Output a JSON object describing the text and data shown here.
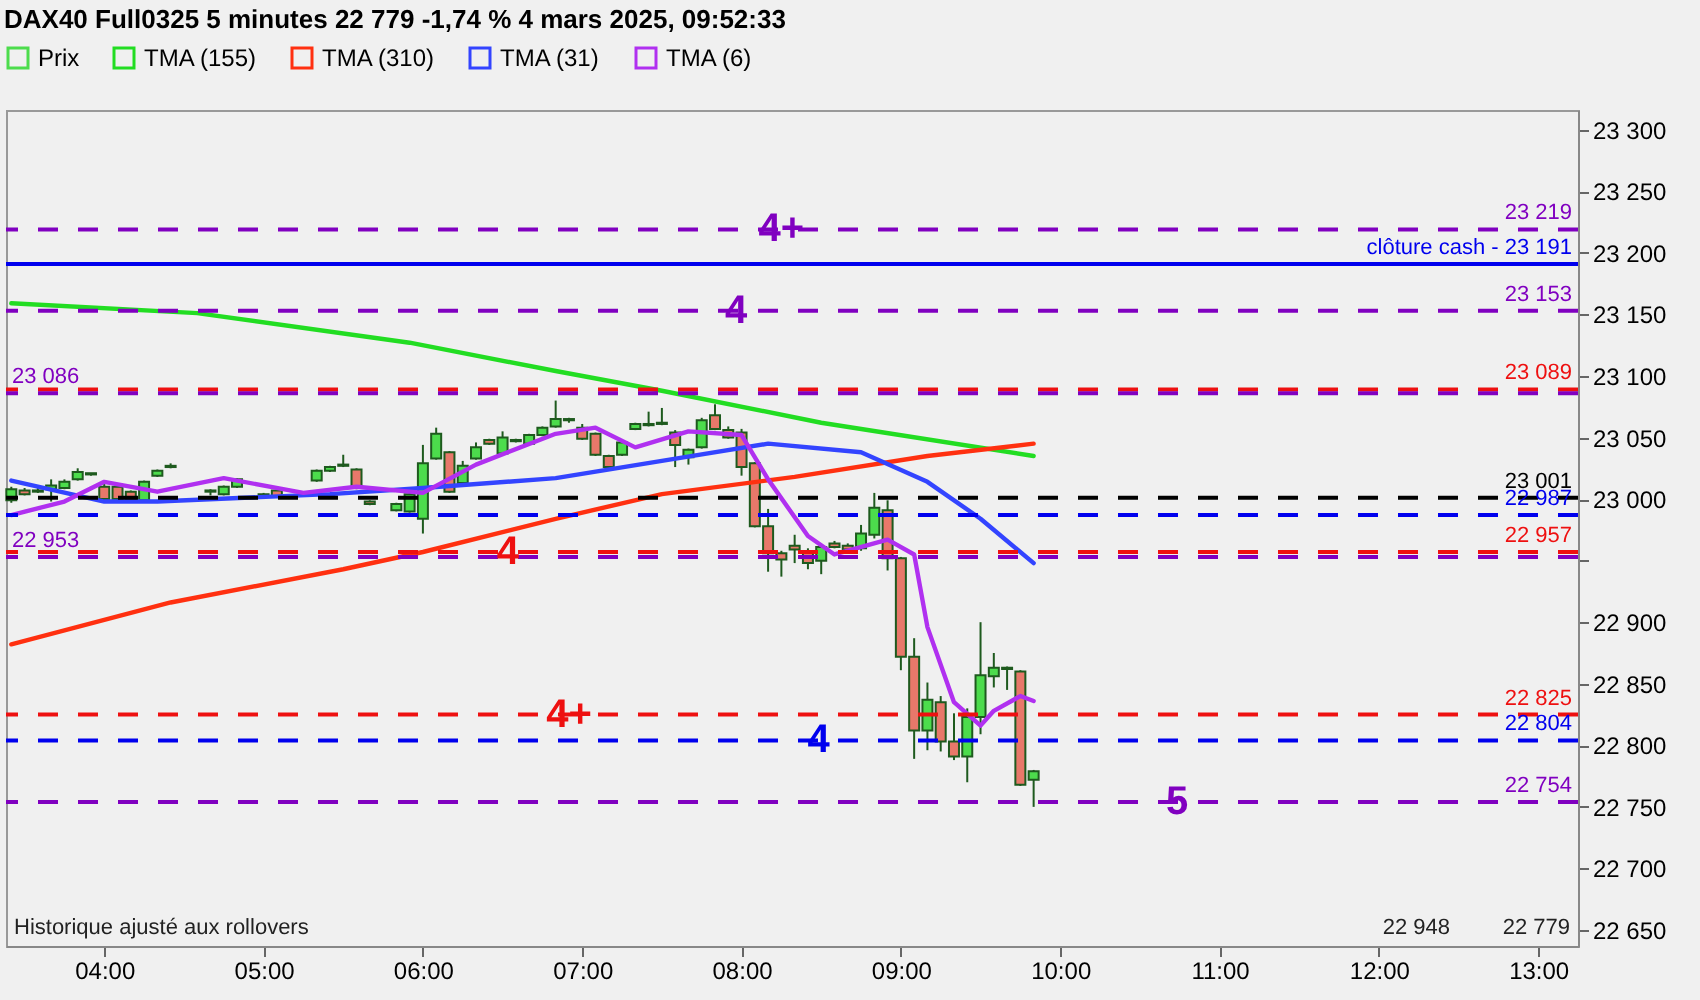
{
  "chart_data": {
    "type": "candlestick",
    "title": "DAX40 Full0325 5 minutes 22 779 -1,74 % 4 mars 2025, 09:52:33",
    "legend": "top left",
    "xlim": [
      "2025-03-04T03:23",
      "2025-03-04T13:15"
    ],
    "xticks": [
      {
        "value": "2025-03-04T04:00",
        "label": "04:00"
      },
      {
        "value": "2025-03-04T05:00",
        "label": "05:00"
      },
      {
        "value": "2025-03-04T06:00",
        "label": "06:00"
      },
      {
        "value": "2025-03-04T07:00",
        "label": "07:00"
      },
      {
        "value": "2025-03-04T08:00",
        "label": "08:00"
      },
      {
        "value": "2025-03-04T09:00",
        "label": "09:00"
      },
      {
        "value": "2025-03-04T10:00",
        "label": "10:00"
      },
      {
        "value": "2025-03-04T11:00",
        "label": "11:00"
      },
      {
        "value": "2025-03-04T12:00",
        "label": "12:00"
      },
      {
        "value": "2025-03-04T13:00",
        "label": "13:00"
      }
    ],
    "ylim": [
      22637,
      23316
    ],
    "yticks": [
      {
        "value": 22650,
        "label": "22 650"
      },
      {
        "value": 22700,
        "label": "22 700"
      },
      {
        "value": 22750,
        "label": "22 750"
      },
      {
        "value": 22800,
        "label": "22 800"
      },
      {
        "value": 22850,
        "label": "22 850"
      },
      {
        "value": 22900,
        "label": "22 900"
      },
      {
        "value": 22950,
        "label": null
      },
      {
        "value": 23000,
        "label": "23 000"
      },
      {
        "value": 23050,
        "label": "23 050"
      },
      {
        "value": 23100,
        "label": "23 100"
      },
      {
        "value": 23150,
        "label": "23 150"
      },
      {
        "value": 23200,
        "label": "23 200"
      },
      {
        "value": 23250,
        "label": "23 250"
      },
      {
        "value": 23300,
        "label": "23 300"
      }
    ],
    "series": [
      {
        "name": "Prix",
        "color": "#1e5a1e",
        "x": [
          "2025-03-04T03:25",
          "2025-03-04T03:30",
          "2025-03-04T03:35",
          "2025-03-04T03:40",
          "2025-03-04T03:45",
          "2025-03-04T03:50",
          "2025-03-04T03:55",
          "2025-03-04T04:00",
          "2025-03-04T04:05",
          "2025-03-04T04:10",
          "2025-03-04T04:15",
          "2025-03-04T04:20",
          "2025-03-04T04:25",
          "2025-03-04T04:40",
          "2025-03-04T04:45",
          "2025-03-04T04:50",
          "2025-03-04T05:00",
          "2025-03-04T05:05",
          "2025-03-04T05:20",
          "2025-03-04T05:25",
          "2025-03-04T05:30",
          "2025-03-04T05:35",
          "2025-03-04T05:40",
          "2025-03-04T05:50",
          "2025-03-04T05:55",
          "2025-03-04T06:00",
          "2025-03-04T06:05",
          "2025-03-04T06:10",
          "2025-03-04T06:15",
          "2025-03-04T06:20",
          "2025-03-04T06:25",
          "2025-03-04T06:30",
          "2025-03-04T06:35",
          "2025-03-04T06:40",
          "2025-03-04T06:45",
          "2025-03-04T06:50",
          "2025-03-04T06:55",
          "2025-03-04T07:00",
          "2025-03-04T07:05",
          "2025-03-04T07:10",
          "2025-03-04T07:15",
          "2025-03-04T07:20",
          "2025-03-04T07:25",
          "2025-03-04T07:30",
          "2025-03-04T07:35",
          "2025-03-04T07:40",
          "2025-03-04T07:45",
          "2025-03-04T07:50",
          "2025-03-04T07:55",
          "2025-03-04T08:00",
          "2025-03-04T08:05",
          "2025-03-04T08:10",
          "2025-03-04T08:15",
          "2025-03-04T08:20",
          "2025-03-04T08:25",
          "2025-03-04T08:30",
          "2025-03-04T08:35",
          "2025-03-04T08:40",
          "2025-03-04T08:45",
          "2025-03-04T08:50",
          "2025-03-04T08:55",
          "2025-03-04T09:00",
          "2025-03-04T09:05",
          "2025-03-04T09:10",
          "2025-03-04T09:15",
          "2025-03-04T09:20",
          "2025-03-04T09:25",
          "2025-03-04T09:30",
          "2025-03-04T09:35",
          "2025-03-04T09:40",
          "2025-03-04T09:45",
          "2025-03-04T09:50"
        ],
        "ohlc": [
          [
            22999,
            23010,
            22997,
            23008
          ],
          [
            23007,
            23009,
            23003,
            23004
          ],
          [
            23006,
            23009,
            23005,
            23007
          ],
          [
            23008,
            23016,
            22998,
            23011
          ],
          [
            23009,
            23016,
            23008,
            23014
          ],
          [
            23016,
            23025,
            23015,
            23022
          ],
          [
            23020,
            23021,
            23019,
            23021
          ],
          [
            23010,
            23013,
            22999,
            23000
          ],
          [
            23010,
            23012,
            22999,
            23000
          ],
          [
            23006,
            23007,
            22998,
            22999
          ],
          [
            22999,
            23015,
            22998,
            23014
          ],
          [
            23019,
            23024,
            23018,
            23023
          ],
          [
            23026,
            23029,
            23025,
            23027
          ],
          [
            23007,
            23008,
            23003,
            23006
          ],
          [
            23004,
            23011,
            23003,
            23010
          ],
          [
            23010,
            23017,
            23009,
            23016
          ],
          [
            23003,
            23005,
            23002,
            23004
          ],
          [
            23007,
            23008,
            23001,
            23002
          ],
          [
            23015,
            23024,
            23014,
            23023
          ],
          [
            23023,
            23027,
            23022,
            23026
          ],
          [
            23027,
            23036,
            23026,
            23028
          ],
          [
            23024,
            23025,
            23008,
            23009
          ],
          [
            22998,
            22999,
            22995,
            22996
          ],
          [
            22991,
            22997,
            22990,
            22996
          ],
          [
            22990,
            23005,
            22989,
            23004
          ],
          [
            22984,
            23044,
            22972,
            23029
          ],
          [
            23033,
            23058,
            23032,
            23053
          ],
          [
            23038,
            23039,
            23005,
            23006
          ],
          [
            23013,
            23031,
            23012,
            23027
          ],
          [
            23033,
            23046,
            23032,
            23042
          ],
          [
            23048,
            23049,
            23044,
            23045
          ],
          [
            23037,
            23055,
            23036,
            23050
          ],
          [
            23047,
            23049,
            23046,
            23048
          ],
          [
            23045,
            23053,
            23044,
            23052
          ],
          [
            23052,
            23059,
            23051,
            23058
          ],
          [
            23059,
            23080,
            23058,
            23065
          ],
          [
            23064,
            23066,
            23062,
            23065
          ],
          [
            23058,
            23061,
            23048,
            23049
          ],
          [
            23053,
            23054,
            23035,
            23036
          ],
          [
            23035,
            23036,
            23025,
            23026
          ],
          [
            23036,
            23048,
            23035,
            23046
          ],
          [
            23057,
            23062,
            23056,
            23061
          ],
          [
            23060,
            23071,
            23059,
            23061
          ],
          [
            23061,
            23074,
            23060,
            23062
          ],
          [
            23054,
            23056,
            23026,
            23044
          ],
          [
            23034,
            23041,
            23028,
            23040
          ],
          [
            23042,
            23066,
            23041,
            23064
          ],
          [
            23068,
            23077,
            23056,
            23057
          ],
          [
            23056,
            23059,
            23049,
            23050
          ],
          [
            23054,
            23057,
            23019,
            23026
          ],
          [
            23029,
            23030,
            22977,
            22978
          ],
          [
            22978,
            22992,
            22941,
            22956
          ],
          [
            22956,
            22958,
            22937,
            22951
          ],
          [
            22962,
            22971,
            22948,
            22959
          ],
          [
            22957,
            22960,
            22943,
            22948
          ],
          [
            22950,
            22962,
            22939,
            22961
          ],
          [
            22964,
            22966,
            22960,
            22961
          ],
          [
            22962,
            22964,
            22957,
            22959
          ],
          [
            22960,
            22979,
            22958,
            22972
          ],
          [
            22971,
            23005,
            22968,
            22993
          ],
          [
            22991,
            22999,
            22942,
            22952
          ],
          [
            22952,
            22953,
            22861,
            22872
          ],
          [
            22872,
            22887,
            22789,
            22812
          ],
          [
            22812,
            22851,
            22796,
            22837
          ],
          [
            22835,
            22840,
            22795,
            22803
          ],
          [
            22803,
            22826,
            22788,
            22791
          ],
          [
            22791,
            22830,
            22770,
            22823
          ],
          [
            22823,
            22900,
            22809,
            22857
          ],
          [
            22856,
            22875,
            22847,
            22863
          ],
          [
            22863,
            22864,
            22845,
            22862
          ],
          [
            22860,
            22861,
            22767,
            22768
          ],
          [
            22772,
            22780,
            22750,
            22779
          ]
        ],
        "colors": [
          "#4cdc4c",
          "#e8786a",
          "#4cdc4c",
          "#4cdc4c",
          "#4cdc4c",
          "#4cdc4c",
          "#4cdc4c",
          "#e8786a",
          "#e8786a",
          "#e8786a",
          "#4cdc4c",
          "#4cdc4c",
          "#4cdc4c",
          "#e8786a",
          "#4cdc4c",
          "#4cdc4c",
          "#4cdc4c",
          "#e8786a",
          "#4cdc4c",
          "#4cdc4c",
          "#4cdc4c",
          "#e8786a",
          "#e8786a",
          "#4cdc4c",
          "#4cdc4c",
          "#4cdc4c",
          "#4cdc4c",
          "#e8786a",
          "#4cdc4c",
          "#4cdc4c",
          "#e8786a",
          "#4cdc4c",
          "#4cdc4c",
          "#4cdc4c",
          "#4cdc4c",
          "#4cdc4c",
          "#4cdc4c",
          "#e8786a",
          "#e8786a",
          "#e8786a",
          "#4cdc4c",
          "#4cdc4c",
          "#4cdc4c",
          "#4cdc4c",
          "#e8786a",
          "#4cdc4c",
          "#4cdc4c",
          "#e8786a",
          "#e8786a",
          "#e8786a",
          "#e8786a",
          "#e8786a",
          "#e8786a",
          "#e8786a",
          "#e8786a",
          "#4cdc4c",
          "#e8786a",
          "#e8786a",
          "#4cdc4c",
          "#4cdc4c",
          "#e8786a",
          "#e8786a",
          "#e8786a",
          "#4cdc4c",
          "#e8786a",
          "#e8786a",
          "#4cdc4c",
          "#4cdc4c",
          "#4cdc4c",
          "#e8786a",
          "#e8786a",
          "#4cdc4c"
        ]
      },
      {
        "name": "TMA (155)",
        "type": "line",
        "color": "#22dd22",
        "x": [
          "2025-03-04T03:25",
          "2025-03-04T04:35",
          "2025-03-04T05:55",
          "2025-03-04T06:50",
          "2025-03-04T07:30",
          "2025-03-04T08:30",
          "2025-03-04T09:50"
        ],
        "values": [
          23159,
          23151,
          23127,
          23104,
          23088,
          23062,
          23035
        ]
      },
      {
        "name": "TMA (310)",
        "type": "line",
        "color": "#ff3010",
        "x": [
          "2025-03-04T03:25",
          "2025-03-04T04:25",
          "2025-03-04T05:30",
          "2025-03-04T06:00",
          "2025-03-04T06:50",
          "2025-03-04T07:30",
          "2025-03-04T08:20",
          "2025-03-04T09:10",
          "2025-03-04T09:50"
        ],
        "values": [
          22882,
          22916,
          22943,
          22957,
          22984,
          23004,
          23018,
          23035,
          23045
        ]
      },
      {
        "name": "TMA (31)",
        "type": "line",
        "color": "#3344ff",
        "x": [
          "2025-03-04T03:25",
          "2025-03-04T04:00",
          "2025-03-04T04:20",
          "2025-03-04T05:25",
          "2025-03-04T06:00",
          "2025-03-04T06:50",
          "2025-03-04T07:30",
          "2025-03-04T08:10",
          "2025-03-04T08:45",
          "2025-03-04T09:10",
          "2025-03-04T09:30",
          "2025-03-04T09:50"
        ],
        "values": [
          23015,
          22998,
          22998,
          23004,
          23009,
          23017,
          23031,
          23045,
          23038,
          23014,
          22984,
          22948
        ]
      },
      {
        "name": "TMA (6)",
        "type": "line",
        "color": "#b030f0",
        "x": [
          "2025-03-04T03:25",
          "2025-03-04T03:45",
          "2025-03-04T04:00",
          "2025-03-04T04:20",
          "2025-03-04T04:45",
          "2025-03-04T05:15",
          "2025-03-04T05:35",
          "2025-03-04T06:00",
          "2025-03-04T06:20",
          "2025-03-04T06:50",
          "2025-03-04T07:05",
          "2025-03-04T07:20",
          "2025-03-04T07:40",
          "2025-03-04T08:00",
          "2025-03-04T08:10",
          "2025-03-04T08:25",
          "2025-03-04T08:35",
          "2025-03-04T08:55",
          "2025-03-04T09:05",
          "2025-03-04T09:10",
          "2025-03-04T09:20",
          "2025-03-04T09:30",
          "2025-03-04T09:35",
          "2025-03-04T09:45",
          "2025-03-04T09:50"
        ],
        "values": [
          22987,
          22998,
          23014,
          23006,
          23017,
          23005,
          23010,
          23005,
          23028,
          23053,
          23058,
          23042,
          23055,
          23052,
          23016,
          22970,
          22955,
          22967,
          22955,
          22896,
          22835,
          22816,
          22828,
          22840,
          22836
        ]
      }
    ],
    "ref_lines": [
      {
        "axis": "y",
        "value": 23219,
        "label": "23 219",
        "color": "#8000c0",
        "line_style": "dashed"
      },
      {
        "axis": "y",
        "value": 23191,
        "label": "clôture cash - 23 191",
        "color": "#0000ee",
        "line_style": "solid"
      },
      {
        "axis": "y",
        "value": 23153,
        "label": "23 153",
        "color": "#8000c0",
        "line_style": "dashed"
      },
      {
        "axis": "y",
        "value": 23089,
        "label": "23 089",
        "color": "#ee1010",
        "line_style": "dashed"
      },
      {
        "axis": "y",
        "value": 23086,
        "label": "23 086",
        "color": "#8000c0",
        "line_style": "dashed"
      },
      {
        "axis": "y",
        "value": 23001,
        "label": "23 001",
        "color": "#000000",
        "line_style": "dashed"
      },
      {
        "axis": "y",
        "value": 22987,
        "label": "22 987",
        "color": "#0000ee",
        "line_style": "dashed"
      },
      {
        "axis": "y",
        "value": 22957,
        "label": "22 957",
        "color": "#ee1010",
        "line_style": "dashed"
      },
      {
        "axis": "y",
        "value": 22953,
        "label": "22 953",
        "color": "#8000c0",
        "line_style": "dashed"
      },
      {
        "axis": "y",
        "value": 22825,
        "label": "22 825",
        "color": "#ee1010",
        "line_style": "dashed"
      },
      {
        "axis": "y",
        "value": 22804,
        "label": "22 804",
        "color": "#0000ee",
        "line_style": "dashed"
      },
      {
        "axis": "y",
        "value": 22754,
        "label": "22 754",
        "color": "#8000c0",
        "line_style": "dashed"
      }
    ],
    "annotations": [
      {
        "text": "4+",
        "x": "2025-03-04T08:15",
        "y": 23219
      },
      {
        "text": "4",
        "x": "2025-03-04T07:58",
        "y": 23153
      },
      {
        "text": "4",
        "x": "2025-03-04T06:32",
        "y": 22957
      },
      {
        "text": "4+",
        "x": "2025-03-04T06:55",
        "y": 22825
      },
      {
        "text": "4",
        "x": "2025-03-04T08:29",
        "y": 22804
      },
      {
        "text": "5",
        "x": "2025-03-04T10:44",
        "y": 22754
      },
      "Historique ajusté aux rollovers",
      "22 948",
      "22 779"
    ]
  }
}
